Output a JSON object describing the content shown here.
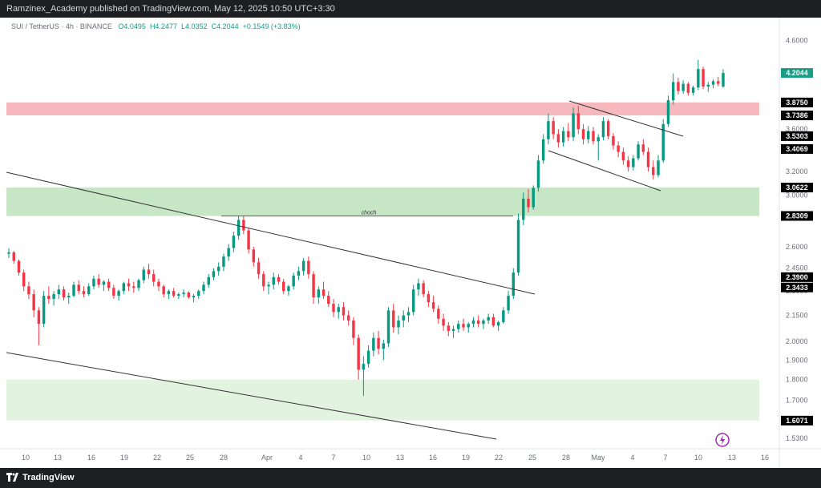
{
  "header": {
    "publisher_line": "Ramzinex_Academy published on TradingView.com, May 12, 2025 10:50 UTC+3:30"
  },
  "symbol_line": {
    "symbol": "SUI / TetherUS · 4h · BINANCE",
    "open": "O4.0495",
    "high": "H4.2477",
    "low": "L4.0352",
    "close": "C4.2044",
    "change": "+0.1549 (+3.83%)"
  },
  "footer": {
    "brand": "TradingView"
  },
  "chart_data": {
    "type": "candlestick",
    "symbol": "SUI / TetherUS",
    "interval": "4h",
    "exchange": "BINANCE",
    "y_scale": "log",
    "ylim": [
      1.52,
      4.9
    ],
    "x_ticks": [
      "10",
      "13",
      "16",
      "19",
      "22",
      "25",
      "28",
      "Apr",
      "4",
      "7",
      "10",
      "13",
      "16",
      "19",
      "22",
      "25",
      "28",
      "May",
      "4",
      "7",
      "10",
      "13",
      "16"
    ],
    "y_ticks": [
      4.6,
      4.2,
      3.6,
      3.2,
      3.0,
      2.6,
      2.45,
      2.3,
      2.15,
      2.0,
      1.9,
      1.8,
      1.7,
      1.53
    ],
    "y_tick_labels": [
      "4.6000",
      "4.2000",
      "3.6000",
      "3.2000",
      "3.0000",
      "2.6000",
      "2.4500",
      "2.3000",
      "2.1500",
      "2.0000",
      "1.9000",
      "1.8000",
      "1.7000",
      "1.5300"
    ],
    "price_tags": [
      {
        "label": "4.2044",
        "value": 4.2044,
        "color": "#1a9c86",
        "text_color": "#ffffff"
      },
      {
        "label": "3.8750",
        "value": 3.875,
        "color": "#000000",
        "text_color": "#ffffff"
      },
      {
        "label": "3.7386",
        "value": 3.7386,
        "color": "#000000",
        "text_color": "#ffffff"
      },
      {
        "label": "3.5303",
        "value": 3.5303,
        "color": "#000000",
        "text_color": "#ffffff"
      },
      {
        "label": "3.4069",
        "value": 3.4069,
        "color": "#000000",
        "text_color": "#ffffff"
      },
      {
        "label": "3.0622",
        "value": 3.0622,
        "color": "#000000",
        "text_color": "#ffffff"
      },
      {
        "label": "2.8309",
        "value": 2.8309,
        "color": "#000000",
        "text_color": "#ffffff"
      },
      {
        "label": "2.3900",
        "value": 2.39,
        "color": "#000000",
        "text_color": "#ffffff"
      },
      {
        "label": "2.3433",
        "value": 2.3433,
        "color": "#000000",
        "text_color": "#ffffff"
      },
      {
        "label": "1.6071",
        "value": 1.6071,
        "color": "#000000",
        "text_color": "#ffffff"
      }
    ],
    "zones": [
      {
        "name": "supply-zone",
        "from": 3.7386,
        "to": 3.875,
        "color": "#f7b8bd"
      },
      {
        "name": "demand-zone",
        "from": 2.8309,
        "to": 3.0622,
        "color": "#c7e6c5"
      },
      {
        "name": "support-zone",
        "from": 1.6071,
        "to": 1.8,
        "color": "#e2f3df"
      }
    ],
    "annotations": [
      {
        "text": "choch",
        "price": 2.8309
      }
    ],
    "candles": [
      [
        2.55,
        2.59,
        2.52,
        2.56
      ],
      [
        2.56,
        2.57,
        2.48,
        2.5
      ],
      [
        2.5,
        2.51,
        2.4,
        2.42
      ],
      [
        2.42,
        2.44,
        2.3,
        2.33
      ],
      [
        2.33,
        2.36,
        2.25,
        2.28
      ],
      [
        2.28,
        2.31,
        2.14,
        2.18
      ],
      [
        2.18,
        2.2,
        1.98,
        2.1
      ],
      [
        2.1,
        2.3,
        2.08,
        2.27
      ],
      [
        2.27,
        2.33,
        2.22,
        2.25
      ],
      [
        2.25,
        2.3,
        2.21,
        2.28
      ],
      [
        2.28,
        2.34,
        2.25,
        2.31
      ],
      [
        2.31,
        2.33,
        2.24,
        2.26
      ],
      [
        2.26,
        2.29,
        2.22,
        2.27
      ],
      [
        2.27,
        2.36,
        2.26,
        2.34
      ],
      [
        2.34,
        2.37,
        2.28,
        2.3
      ],
      [
        2.3,
        2.33,
        2.26,
        2.28
      ],
      [
        2.28,
        2.35,
        2.27,
        2.33
      ],
      [
        2.33,
        2.4,
        2.31,
        2.38
      ],
      [
        2.38,
        2.41,
        2.32,
        2.34
      ],
      [
        2.34,
        2.37,
        2.3,
        2.36
      ],
      [
        2.36,
        2.38,
        2.3,
        2.32
      ],
      [
        2.32,
        2.34,
        2.25,
        2.27
      ],
      [
        2.27,
        2.31,
        2.24,
        2.3
      ],
      [
        2.3,
        2.36,
        2.28,
        2.35
      ],
      [
        2.35,
        2.38,
        2.3,
        2.33
      ],
      [
        2.33,
        2.36,
        2.29,
        2.32
      ],
      [
        2.32,
        2.38,
        2.3,
        2.37
      ],
      [
        2.37,
        2.46,
        2.35,
        2.44
      ],
      [
        2.44,
        2.48,
        2.38,
        2.41
      ],
      [
        2.41,
        2.44,
        2.33,
        2.36
      ],
      [
        2.36,
        2.38,
        2.3,
        2.33
      ],
      [
        2.33,
        2.34,
        2.26,
        2.28
      ],
      [
        2.28,
        2.31,
        2.25,
        2.3
      ],
      [
        2.3,
        2.32,
        2.26,
        2.27
      ],
      [
        2.27,
        2.29,
        2.25,
        2.28
      ],
      [
        2.28,
        2.31,
        2.26,
        2.29
      ],
      [
        2.29,
        2.3,
        2.25,
        2.26
      ],
      [
        2.26,
        2.28,
        2.23,
        2.27
      ],
      [
        2.27,
        2.31,
        2.25,
        2.3
      ],
      [
        2.3,
        2.36,
        2.28,
        2.34
      ],
      [
        2.34,
        2.41,
        2.32,
        2.39
      ],
      [
        2.39,
        2.45,
        2.37,
        2.43
      ],
      [
        2.43,
        2.49,
        2.4,
        2.46
      ],
      [
        2.46,
        2.55,
        2.43,
        2.53
      ],
      [
        2.53,
        2.62,
        2.5,
        2.59
      ],
      [
        2.59,
        2.71,
        2.56,
        2.68
      ],
      [
        2.68,
        2.83,
        2.65,
        2.8
      ],
      [
        2.8,
        2.83,
        2.69,
        2.72
      ],
      [
        2.72,
        2.74,
        2.55,
        2.58
      ],
      [
        2.58,
        2.6,
        2.46,
        2.49
      ],
      [
        2.49,
        2.52,
        2.38,
        2.41
      ],
      [
        2.41,
        2.43,
        2.3,
        2.33
      ],
      [
        2.33,
        2.36,
        2.28,
        2.34
      ],
      [
        2.34,
        2.42,
        2.31,
        2.39
      ],
      [
        2.39,
        2.41,
        2.34,
        2.36
      ],
      [
        2.36,
        2.38,
        2.28,
        2.3
      ],
      [
        2.3,
        2.34,
        2.27,
        2.33
      ],
      [
        2.33,
        2.42,
        2.31,
        2.4
      ],
      [
        2.4,
        2.46,
        2.37,
        2.43
      ],
      [
        2.43,
        2.52,
        2.4,
        2.5
      ],
      [
        2.5,
        2.53,
        2.38,
        2.41
      ],
      [
        2.41,
        2.43,
        2.22,
        2.26
      ],
      [
        2.26,
        2.33,
        2.22,
        2.31
      ],
      [
        2.31,
        2.36,
        2.25,
        2.27
      ],
      [
        2.27,
        2.3,
        2.2,
        2.22
      ],
      [
        2.22,
        2.25,
        2.14,
        2.17
      ],
      [
        2.17,
        2.22,
        2.13,
        2.2
      ],
      [
        2.2,
        2.23,
        2.12,
        2.15
      ],
      [
        2.15,
        2.18,
        2.09,
        2.12
      ],
      [
        2.12,
        2.14,
        1.98,
        2.02
      ],
      [
        2.02,
        2.04,
        1.8,
        1.85
      ],
      [
        1.85,
        1.92,
        1.72,
        1.88
      ],
      [
        1.88,
        1.98,
        1.86,
        1.95
      ],
      [
        1.95,
        2.05,
        1.92,
        2.02
      ],
      [
        2.02,
        2.06,
        1.93,
        1.96
      ],
      [
        1.96,
        2.01,
        1.9,
        1.99
      ],
      [
        1.99,
        2.2,
        1.97,
        2.18
      ],
      [
        2.18,
        2.22,
        2.05,
        2.08
      ],
      [
        2.08,
        2.15,
        2.04,
        2.12
      ],
      [
        2.12,
        2.18,
        2.08,
        2.15
      ],
      [
        2.15,
        2.2,
        2.11,
        2.17
      ],
      [
        2.17,
        2.34,
        2.15,
        2.31
      ],
      [
        2.31,
        2.38,
        2.27,
        2.35
      ],
      [
        2.35,
        2.37,
        2.26,
        2.28
      ],
      [
        2.28,
        2.3,
        2.2,
        2.23
      ],
      [
        2.23,
        2.27,
        2.17,
        2.19
      ],
      [
        2.19,
        2.21,
        2.1,
        2.13
      ],
      [
        2.13,
        2.16,
        2.06,
        2.09
      ],
      [
        2.09,
        2.11,
        2.03,
        2.06
      ],
      [
        2.06,
        2.09,
        2.02,
        2.07
      ],
      [
        2.07,
        2.12,
        2.05,
        2.1
      ],
      [
        2.1,
        2.13,
        2.06,
        2.08
      ],
      [
        2.08,
        2.11,
        2.05,
        2.1
      ],
      [
        2.1,
        2.14,
        2.08,
        2.12
      ],
      [
        2.12,
        2.15,
        2.08,
        2.1
      ],
      [
        2.1,
        2.13,
        2.07,
        2.12
      ],
      [
        2.12,
        2.16,
        2.1,
        2.14
      ],
      [
        2.14,
        2.16,
        2.08,
        2.09
      ],
      [
        2.09,
        2.12,
        2.06,
        2.11
      ],
      [
        2.11,
        2.2,
        2.1,
        2.18
      ],
      [
        2.18,
        2.3,
        2.16,
        2.27
      ],
      [
        2.27,
        2.45,
        2.25,
        2.42
      ],
      [
        2.42,
        2.85,
        2.4,
        2.8
      ],
      [
        2.8,
        3.02,
        2.76,
        2.97
      ],
      [
        2.97,
        3.05,
        2.86,
        2.9
      ],
      [
        2.9,
        3.08,
        2.88,
        3.06
      ],
      [
        3.06,
        3.35,
        3.03,
        3.3
      ],
      [
        3.3,
        3.55,
        3.27,
        3.5
      ],
      [
        3.5,
        3.76,
        3.45,
        3.68
      ],
      [
        3.68,
        3.72,
        3.5,
        3.55
      ],
      [
        3.55,
        3.6,
        3.42,
        3.47
      ],
      [
        3.47,
        3.62,
        3.43,
        3.58
      ],
      [
        3.58,
        3.66,
        3.48,
        3.52
      ],
      [
        3.52,
        3.82,
        3.48,
        3.76
      ],
      [
        3.76,
        3.84,
        3.55,
        3.6
      ],
      [
        3.6,
        3.65,
        3.45,
        3.5
      ],
      [
        3.5,
        3.63,
        3.46,
        3.58
      ],
      [
        3.58,
        3.62,
        3.45,
        3.48
      ],
      [
        3.48,
        3.55,
        3.3,
        3.52
      ],
      [
        3.52,
        3.72,
        3.49,
        3.68
      ],
      [
        3.68,
        3.7,
        3.5,
        3.53
      ],
      [
        3.53,
        3.56,
        3.4,
        3.44
      ],
      [
        3.44,
        3.48,
        3.33,
        3.38
      ],
      [
        3.38,
        3.42,
        3.26,
        3.3
      ],
      [
        3.3,
        3.34,
        3.2,
        3.24
      ],
      [
        3.24,
        3.35,
        3.21,
        3.32
      ],
      [
        3.32,
        3.48,
        3.3,
        3.45
      ],
      [
        3.45,
        3.5,
        3.35,
        3.38
      ],
      [
        3.38,
        3.42,
        3.2,
        3.24
      ],
      [
        3.24,
        3.3,
        3.13,
        3.17
      ],
      [
        3.17,
        3.35,
        3.15,
        3.3
      ],
      [
        3.3,
        3.7,
        3.28,
        3.65
      ],
      [
        3.65,
        3.95,
        3.62,
        3.9
      ],
      [
        3.9,
        4.2,
        3.85,
        4.1
      ],
      [
        4.1,
        4.15,
        3.96,
        4.0
      ],
      [
        4.0,
        4.12,
        3.97,
        4.08
      ],
      [
        4.08,
        4.1,
        3.95,
        3.98
      ],
      [
        3.98,
        4.06,
        3.95,
        4.04
      ],
      [
        4.04,
        4.36,
        4.01,
        4.25
      ],
      [
        4.25,
        4.28,
        4.02,
        4.05
      ],
      [
        4.05,
        4.1,
        3.99,
        4.07
      ],
      [
        4.07,
        4.13,
        4.03,
        4.11
      ],
      [
        4.11,
        4.16,
        4.05,
        4.08
      ],
      [
        4.0495,
        4.2477,
        4.0352,
        4.2044
      ]
    ]
  }
}
